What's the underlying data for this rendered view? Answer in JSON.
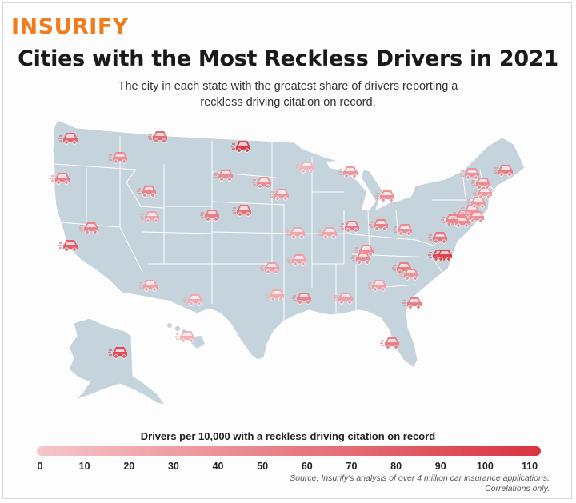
{
  "brand": {
    "logo_text": "INSURIFY"
  },
  "header": {
    "title": "Cities with the Most Reckless Drivers in 2021",
    "subtitle": "The city in each state with the greatest share of drivers reporting a reckless driving citation on record."
  },
  "legend": {
    "title": "Drivers per 10,000 with a reckless driving citation on record",
    "ticks": [
      "0",
      "10",
      "20",
      "30",
      "40",
      "50",
      "60",
      "70",
      "80",
      "90",
      "100",
      "110"
    ],
    "min": 0,
    "max": 110,
    "color_low": "#f6c6ca",
    "color_high": "#d9343f"
  },
  "source": {
    "line1": "Source: Insurify's analysis of over 4 million car insurance applications.",
    "line2": "Correlations only."
  },
  "map": {
    "land_color": "#c5d3dd",
    "border_color": "#ffffff",
    "marker_icon": "car-icon",
    "markers": [
      {
        "state": "WA",
        "value": 72
      },
      {
        "state": "OR",
        "value": 55
      },
      {
        "state": "CA",
        "value": 78
      },
      {
        "state": "NV",
        "value": 50
      },
      {
        "state": "ID",
        "value": 45
      },
      {
        "state": "MT",
        "value": 68
      },
      {
        "state": "WY",
        "value": 50
      },
      {
        "state": "UT",
        "value": 25
      },
      {
        "state": "CO",
        "value": 55
      },
      {
        "state": "AZ",
        "value": 30
      },
      {
        "state": "NM",
        "value": 22
      },
      {
        "state": "ND",
        "value": 105
      },
      {
        "state": "SD",
        "value": 45
      },
      {
        "state": "NE",
        "value": 65
      },
      {
        "state": "KS",
        "value": 25
      },
      {
        "state": "OK",
        "value": 30
      },
      {
        "state": "TX",
        "value": 20
      },
      {
        "state": "MN",
        "value": 15
      },
      {
        "state": "IA",
        "value": 45
      },
      {
        "state": "MO",
        "value": 25
      },
      {
        "state": "AR",
        "value": 30
      },
      {
        "state": "LA",
        "value": 50
      },
      {
        "state": "WI",
        "value": 35
      },
      {
        "state": "IL",
        "value": 55
      },
      {
        "state": "MI",
        "value": 35
      },
      {
        "state": "IN",
        "value": 40
      },
      {
        "state": "OH",
        "value": 50
      },
      {
        "state": "KY",
        "value": 45
      },
      {
        "state": "TN",
        "value": 45
      },
      {
        "state": "MS",
        "value": 30
      },
      {
        "state": "AL",
        "value": 30
      },
      {
        "state": "GA",
        "value": 55
      },
      {
        "state": "FL",
        "value": 55
      },
      {
        "state": "SC",
        "value": 55
      },
      {
        "state": "NC",
        "value": 85
      },
      {
        "state": "VA",
        "value": 60
      },
      {
        "state": "WV",
        "value": 45
      },
      {
        "state": "MD",
        "value": 50
      },
      {
        "state": "DE",
        "value": 45
      },
      {
        "state": "NJ",
        "value": 40
      },
      {
        "state": "PA",
        "value": 45
      },
      {
        "state": "NY",
        "value": 40
      },
      {
        "state": "CT",
        "value": 35
      },
      {
        "state": "RI",
        "value": 35
      },
      {
        "state": "MA",
        "value": 45
      },
      {
        "state": "NH",
        "value": 40
      },
      {
        "state": "VT",
        "value": 40
      },
      {
        "state": "ME",
        "value": 55
      },
      {
        "state": "DC",
        "value": 100
      },
      {
        "state": "AK",
        "value": 95
      },
      {
        "state": "HI",
        "value": 18
      }
    ]
  }
}
